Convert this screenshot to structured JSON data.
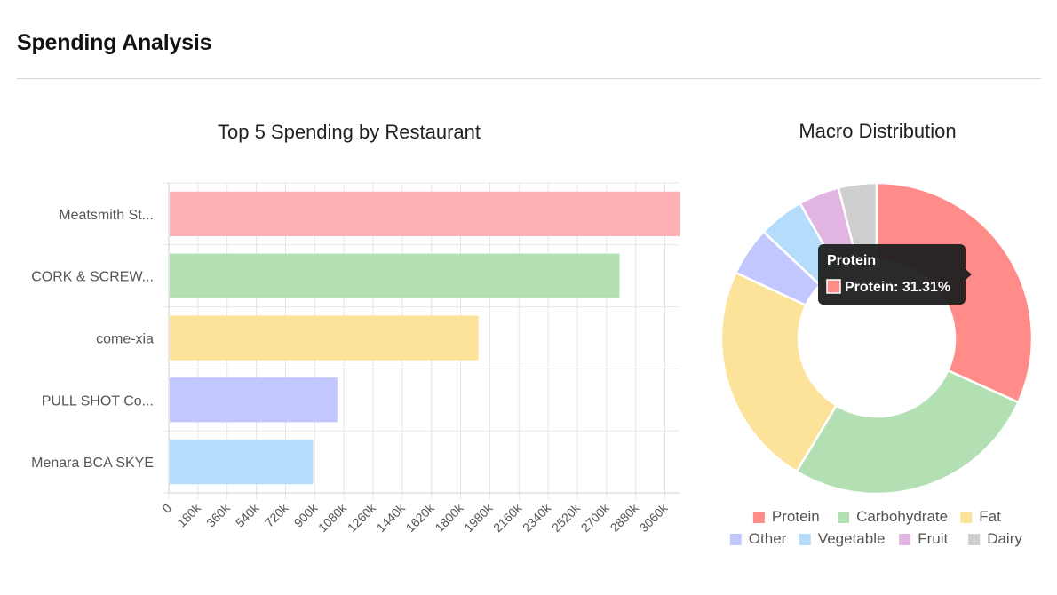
{
  "section": {
    "title": "Spending Analysis"
  },
  "bar_chart_data": {
    "type": "bar",
    "orientation": "horizontal",
    "title": "Top 5 Spending by Restaurant",
    "categories": [
      "Meatsmith St...",
      "CORK & SCREW...",
      "come-xia",
      "PULL SHOT Co...",
      "Menara BCA SKYE"
    ],
    "values": [
      3150000,
      2780000,
      1910000,
      1040000,
      890000
    ],
    "colors": [
      "#ffb1b6",
      "#b3e0b3",
      "#fde39a",
      "#c2c8ff",
      "#b5dcfb"
    ],
    "xlim": [
      0,
      3150000
    ],
    "xticks": [
      "0",
      "180k",
      "360k",
      "540k",
      "720k",
      "900k",
      "1080k",
      "1260k",
      "1440k",
      "1620k",
      "1800k",
      "1980k",
      "2160k",
      "2340k",
      "2520k",
      "2700k",
      "2880k",
      "3060k"
    ],
    "grid": true
  },
  "donut_chart_data": {
    "type": "pie",
    "variant": "donut",
    "title": "Macro Distribution",
    "categories": [
      "Protein",
      "Carbohydrate",
      "Fat",
      "Other",
      "Vegetable",
      "Fruit",
      "Dairy"
    ],
    "values": [
      31.31,
      26.5,
      23.0,
      5.0,
      4.7,
      4.2,
      3.9
    ],
    "colors": [
      "#ff8c89",
      "#b3e0b3",
      "#fde39a",
      "#c2c8ff",
      "#b5dcfb",
      "#e2b5e3",
      "#cfcfcf"
    ],
    "legend_position": "bottom"
  },
  "tooltip": {
    "title": "Protein",
    "label": "Protein: 31.31%",
    "swatch_color": "#ff8c89"
  }
}
